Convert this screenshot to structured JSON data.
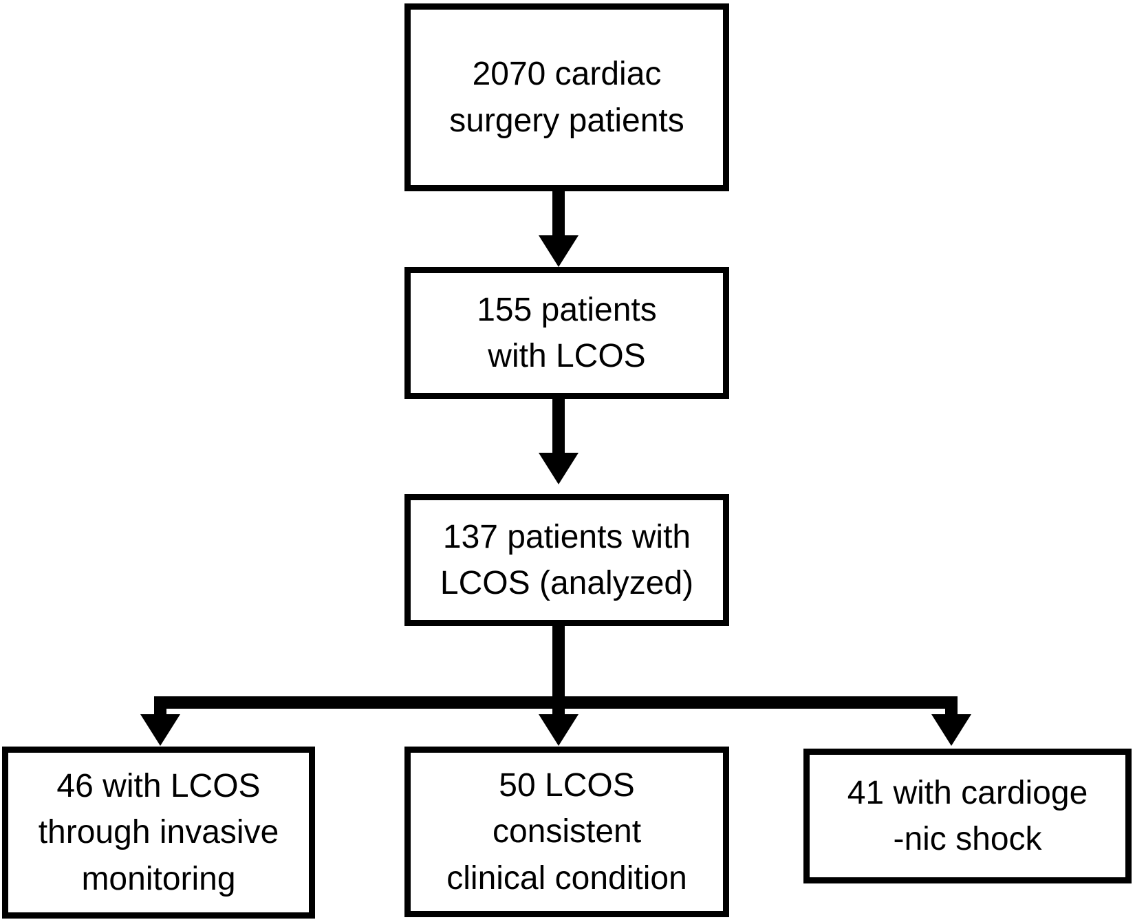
{
  "diagram": {
    "type": "flowchart",
    "background_color": "#ffffff",
    "box_border_color": "#000000",
    "arrow_color": "#000000",
    "text_color": "#000000",
    "nodes": {
      "total": {
        "label": "2070 cardiac\nsurgery patients",
        "count": 2070
      },
      "lcos": {
        "label": "155 patients\nwith LCOS",
        "count": 155
      },
      "analyzed": {
        "label": "137 patients with\nLCOS (analyzed)",
        "count": 137
      },
      "invasive": {
        "label": "46 with LCOS\nthrough invasive\nmonitoring",
        "count": 46
      },
      "clinical": {
        "label": "50 LCOS\nconsistent\nclinical condition",
        "count": 50
      },
      "shock": {
        "label": "41 with cardioge\n-nic shock",
        "count": 41
      }
    },
    "edges": [
      {
        "from": "total",
        "to": "lcos"
      },
      {
        "from": "lcos",
        "to": "analyzed"
      },
      {
        "from": "analyzed",
        "to": "invasive"
      },
      {
        "from": "analyzed",
        "to": "clinical"
      },
      {
        "from": "analyzed",
        "to": "shock"
      }
    ]
  }
}
